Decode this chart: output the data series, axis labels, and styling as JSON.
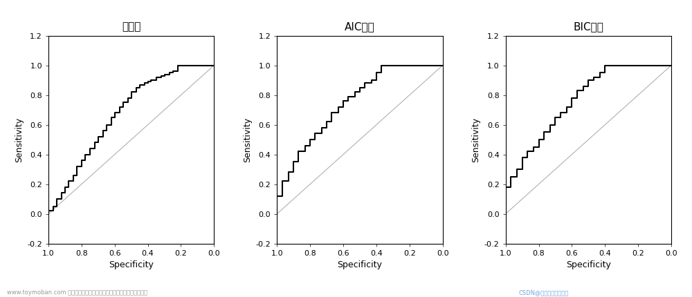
{
  "titles": [
    "全模型",
    "AIC模型",
    "BIC模型"
  ],
  "xlabel": "Specificity",
  "ylabel": "Sensitivity",
  "xlim": [
    1.0,
    0.0
  ],
  "ylim": [
    -0.2,
    1.2
  ],
  "xticks": [
    1.0,
    0.8,
    0.6,
    0.4,
    0.2,
    0.0
  ],
  "yticks": [
    -0.2,
    0.0,
    0.2,
    0.4,
    0.6,
    0.8,
    1.0,
    1.2
  ],
  "ytick_labels": [
    "-0.2",
    "0.0",
    "0.2",
    "0.4",
    "0.6",
    "0.8",
    "1.0",
    "1.2"
  ],
  "background_color": "#ffffff",
  "line_color": "#000000",
  "diag_color": "#b0b0b0",
  "roc1_spec": [
    1.0,
    0.97,
    0.95,
    0.92,
    0.9,
    0.88,
    0.85,
    0.83,
    0.8,
    0.78,
    0.75,
    0.72,
    0.7,
    0.67,
    0.65,
    0.62,
    0.6,
    0.57,
    0.55,
    0.52,
    0.5,
    0.47,
    0.45,
    0.42,
    0.4,
    0.38,
    0.35,
    0.32,
    0.3,
    0.27,
    0.25,
    0.22,
    0.2,
    0.18,
    0.15,
    0.12,
    0.1,
    0.07,
    0.05,
    0.02,
    0.0
  ],
  "roc1_sens": [
    0.0,
    0.02,
    0.05,
    0.1,
    0.14,
    0.18,
    0.22,
    0.26,
    0.32,
    0.36,
    0.4,
    0.44,
    0.48,
    0.52,
    0.56,
    0.6,
    0.65,
    0.68,
    0.72,
    0.75,
    0.78,
    0.82,
    0.85,
    0.87,
    0.88,
    0.89,
    0.9,
    0.92,
    0.93,
    0.94,
    0.95,
    0.96,
    1.0,
    1.0,
    1.0,
    1.0,
    1.0,
    1.0,
    1.0,
    1.0,
    1.0
  ],
  "roc2_spec": [
    1.0,
    0.97,
    0.93,
    0.9,
    0.87,
    0.83,
    0.8,
    0.77,
    0.73,
    0.7,
    0.67,
    0.63,
    0.6,
    0.57,
    0.53,
    0.5,
    0.47,
    0.43,
    0.4,
    0.37,
    0.33,
    0.3,
    0.27,
    0.23,
    0.2,
    0.17,
    0.13,
    0.1,
    0.07,
    0.03,
    0.0
  ],
  "roc2_sens": [
    0.0,
    0.12,
    0.22,
    0.28,
    0.35,
    0.42,
    0.46,
    0.5,
    0.54,
    0.58,
    0.62,
    0.68,
    0.72,
    0.76,
    0.79,
    0.82,
    0.85,
    0.88,
    0.9,
    0.95,
    1.0,
    1.0,
    1.0,
    1.0,
    1.0,
    1.0,
    1.0,
    1.0,
    1.0,
    1.0,
    1.0
  ],
  "roc3_spec": [
    1.0,
    0.97,
    0.93,
    0.9,
    0.87,
    0.83,
    0.8,
    0.77,
    0.73,
    0.7,
    0.67,
    0.63,
    0.6,
    0.57,
    0.53,
    0.5,
    0.47,
    0.43,
    0.4,
    0.37,
    0.33,
    0.3,
    0.27,
    0.23,
    0.2,
    0.17,
    0.13,
    0.1,
    0.07,
    0.03,
    0.0
  ],
  "roc3_sens": [
    0.0,
    0.18,
    0.25,
    0.3,
    0.38,
    0.42,
    0.45,
    0.5,
    0.55,
    0.6,
    0.65,
    0.68,
    0.72,
    0.78,
    0.83,
    0.86,
    0.9,
    0.92,
    0.95,
    1.0,
    1.0,
    1.0,
    1.0,
    1.0,
    1.0,
    1.0,
    1.0,
    1.0,
    1.0,
    1.0,
    1.0
  ],
  "watermark_left": "www.toymoban.com 网络图片仅供展示，非存储，如有侵权请联系删除。",
  "watermark_right": "CSDN@数据人的自我救赎"
}
